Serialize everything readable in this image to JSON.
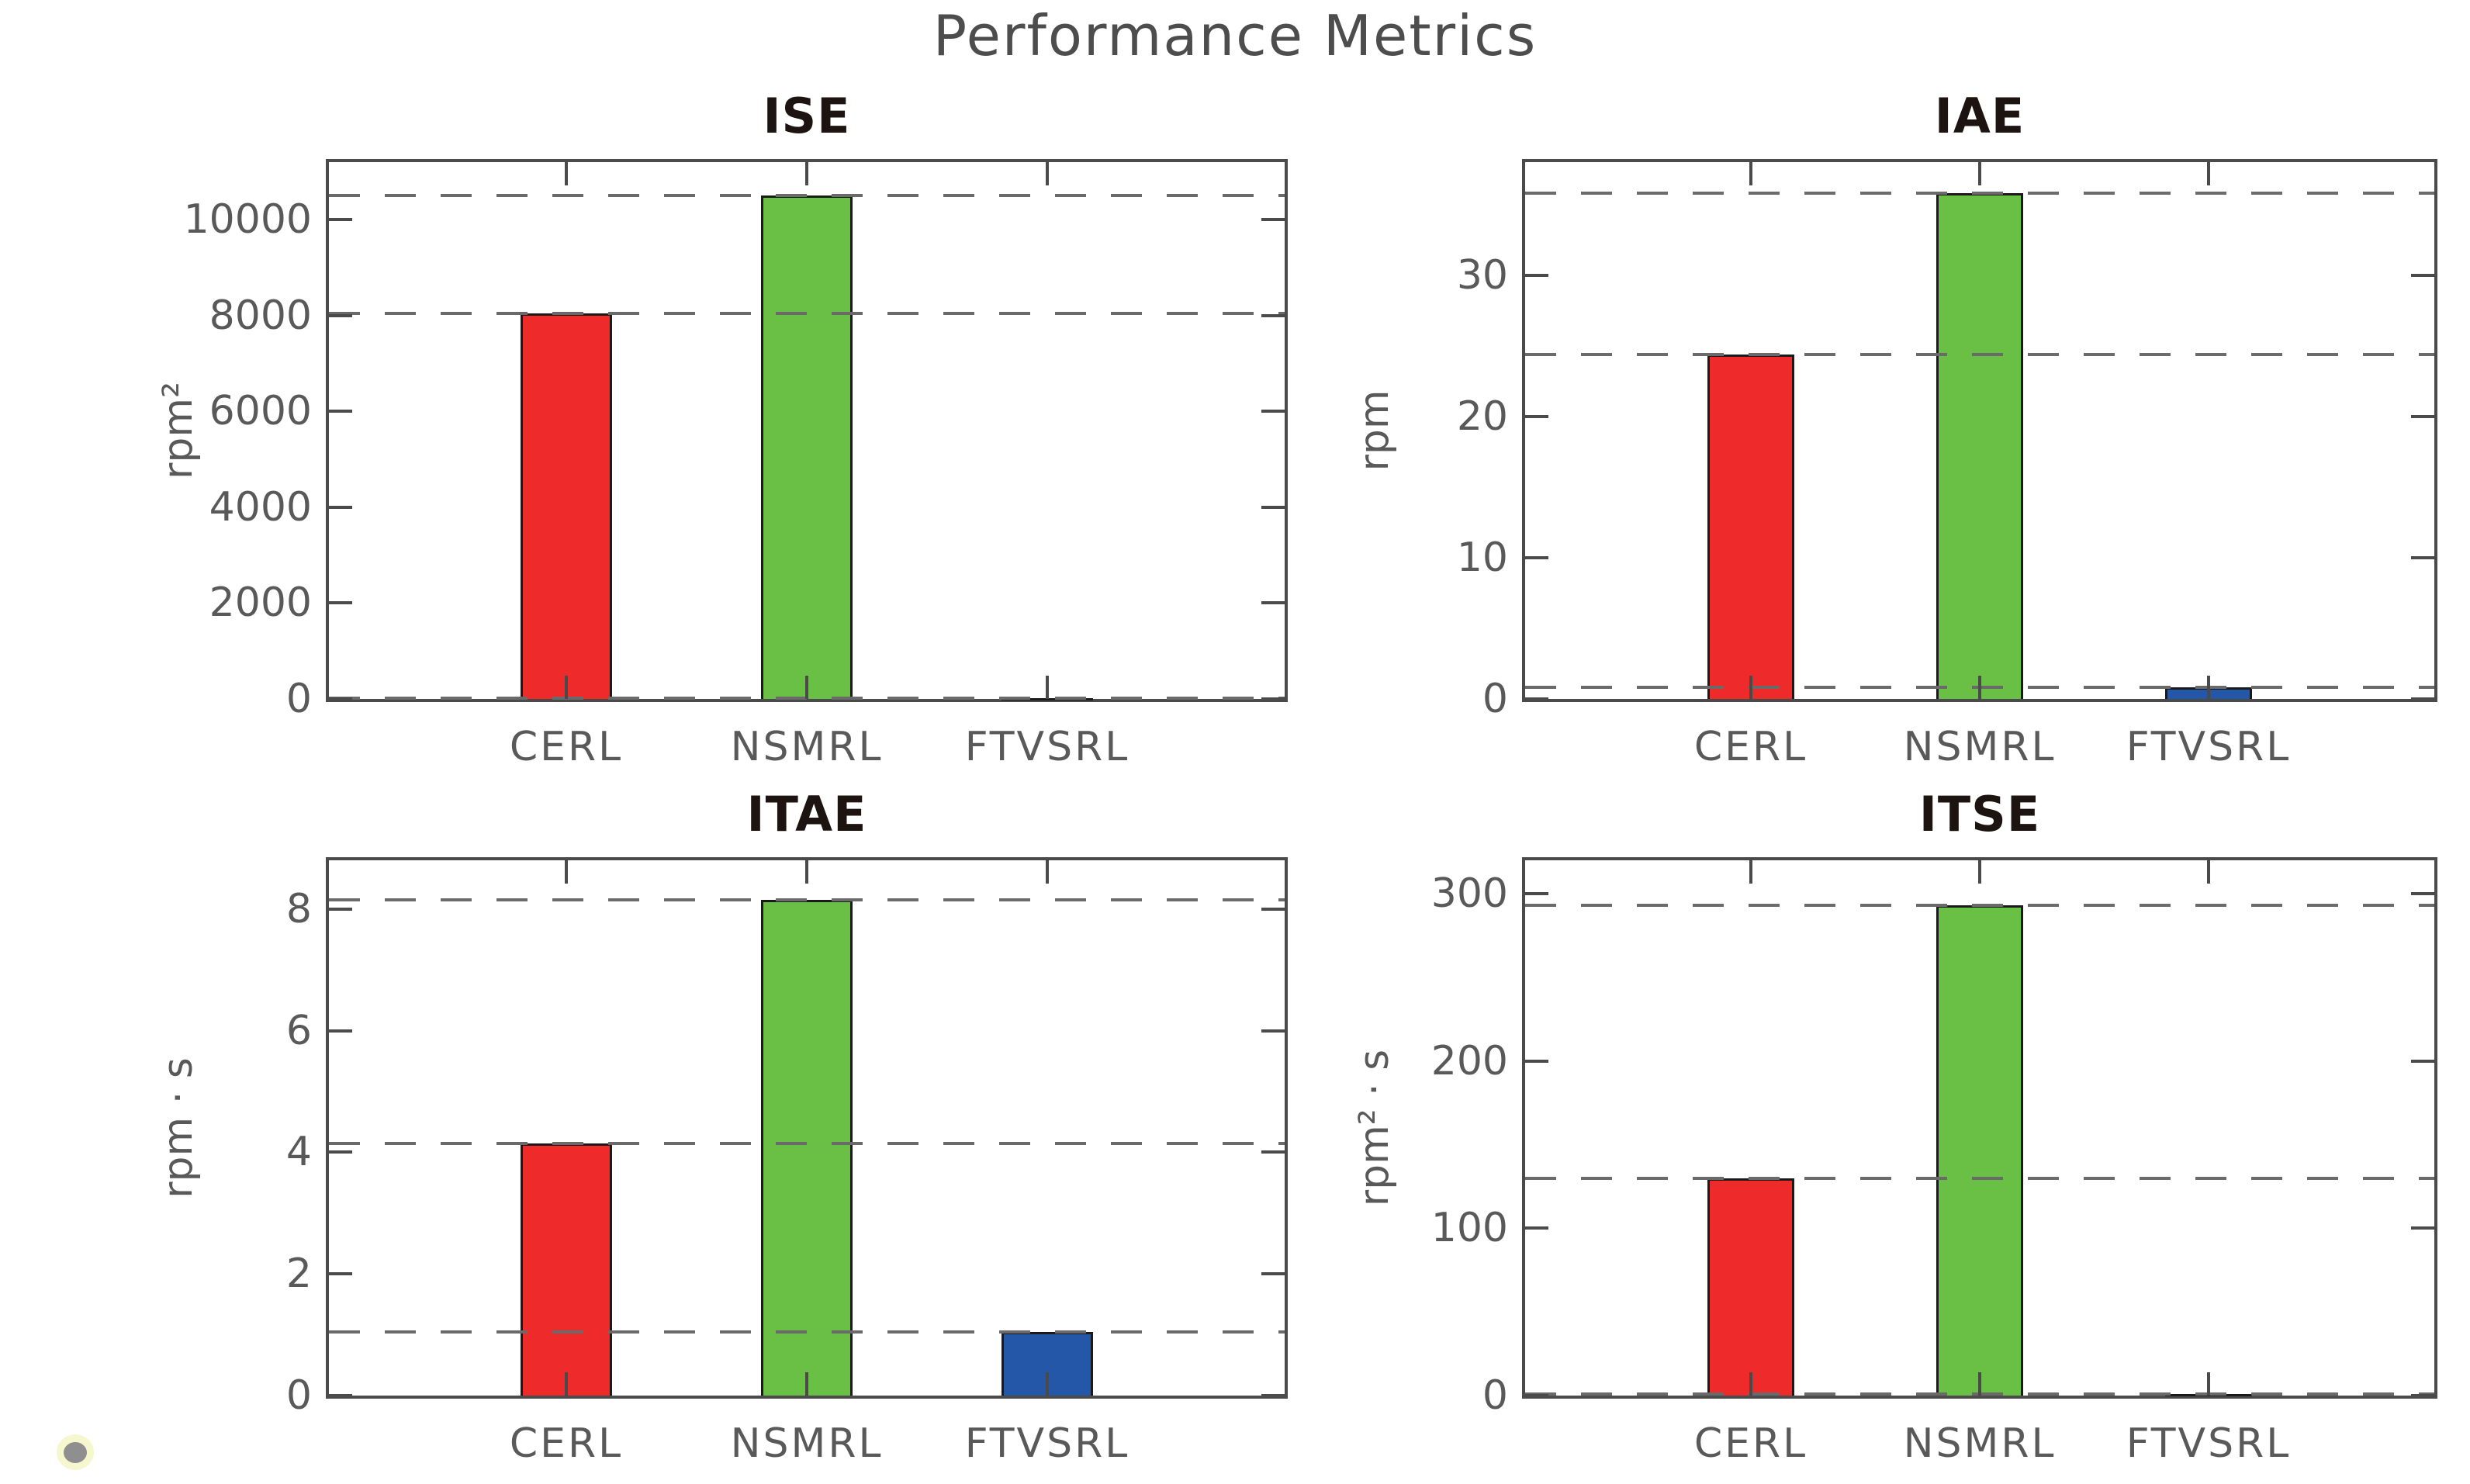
{
  "suptitle": "Performance Metrics",
  "stray_marker": "gray-dot",
  "colors": {
    "bar_fill": [
      "#ee2a2a",
      "#6abf45",
      "#2457a8"
    ],
    "bar_edge": "#1a1a1a",
    "spine": "#4a4a4a",
    "refline": "#6a6a6a",
    "tick_text": "#595959",
    "subplot_title_text": "#1d1412",
    "suptitle_text": "#4d4d4d"
  },
  "chart_data": [
    {
      "type": "bar",
      "title": "ISE",
      "ylabel": "rpm²",
      "xlabel": "",
      "categories": [
        "CERL",
        "NSMRL",
        "FTVSRL"
      ],
      "values": [
        8050,
        10500,
        20
      ],
      "yticks": [
        0,
        2000,
        4000,
        6000,
        8000,
        10000
      ],
      "ylim": [
        0,
        11200
      ],
      "ref_lines": [
        8050,
        10500,
        20
      ],
      "grid": false,
      "legend": "none"
    },
    {
      "type": "bar",
      "title": "IAE",
      "ylabel": "rpm",
      "xlabel": "",
      "categories": [
        "CERL",
        "NSMRL",
        "FTVSRL"
      ],
      "values": [
        24.4,
        35.8,
        0.8
      ],
      "yticks": [
        0,
        10,
        20,
        30
      ],
      "ylim": [
        0,
        38
      ],
      "ref_lines": [
        24.4,
        35.8,
        0.8
      ],
      "grid": false,
      "legend": "none"
    },
    {
      "type": "bar",
      "title": "ITAE",
      "ylabel": "rpm · s",
      "xlabel": "",
      "categories": [
        "CERL",
        "NSMRL",
        "FTVSRL"
      ],
      "values": [
        4.15,
        8.15,
        1.05
      ],
      "yticks": [
        0,
        2,
        4,
        6,
        8
      ],
      "ylim": [
        0,
        8.8
      ],
      "ref_lines": [
        4.15,
        8.15,
        1.05
      ],
      "grid": false,
      "legend": "none"
    },
    {
      "type": "bar",
      "title": "ITSE",
      "ylabel": "rpm² · s",
      "xlabel": "",
      "categories": [
        "CERL",
        "NSMRL",
        "FTVSRL"
      ],
      "values": [
        130,
        293,
        1
      ],
      "yticks": [
        0,
        100,
        200,
        300
      ],
      "ylim": [
        0,
        320
      ],
      "ref_lines": [
        130,
        293,
        1
      ],
      "grid": false,
      "legend": "none"
    }
  ]
}
